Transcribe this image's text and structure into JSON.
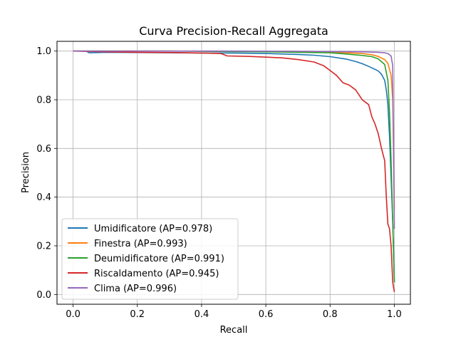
{
  "chart_data": {
    "type": "line",
    "title": "Curva Precision-Recall Aggregata",
    "xlabel": "Recall",
    "ylabel": "Precision",
    "xlim": [
      -0.05,
      1.05
    ],
    "ylim": [
      -0.04,
      1.04
    ],
    "xticks": [
      "0.0",
      "0.2",
      "0.4",
      "0.6",
      "0.8",
      "1.0"
    ],
    "yticks": [
      "0.0",
      "0.2",
      "0.4",
      "0.6",
      "0.8",
      "1.0"
    ],
    "grid": true,
    "legend_position": "lower-left",
    "series": [
      {
        "name": "Umidificatore (AP=0.978)",
        "color": "#1f77b4",
        "points": [
          [
            0.0,
            1.0
          ],
          [
            0.04,
            1.0
          ],
          [
            0.05,
            0.993
          ],
          [
            0.1,
            0.995
          ],
          [
            0.2,
            0.994
          ],
          [
            0.3,
            0.993
          ],
          [
            0.4,
            0.992
          ],
          [
            0.5,
            0.992
          ],
          [
            0.6,
            0.99
          ],
          [
            0.7,
            0.986
          ],
          [
            0.75,
            0.983
          ],
          [
            0.8,
            0.977
          ],
          [
            0.85,
            0.967
          ],
          [
            0.88,
            0.957
          ],
          [
            0.9,
            0.948
          ],
          [
            0.92,
            0.937
          ],
          [
            0.94,
            0.925
          ],
          [
            0.95,
            0.918
          ],
          [
            0.96,
            0.905
          ],
          [
            0.97,
            0.88
          ],
          [
            0.975,
            0.84
          ],
          [
            0.98,
            0.78
          ],
          [
            0.985,
            0.65
          ],
          [
            0.99,
            0.48
          ],
          [
            0.995,
            0.3
          ],
          [
            0.998,
            0.15
          ],
          [
            1.0,
            0.05
          ]
        ]
      },
      {
        "name": "Finestra (AP=0.993)",
        "color": "#ff7f0e",
        "points": [
          [
            0.0,
            1.0
          ],
          [
            0.3,
            1.0
          ],
          [
            0.5,
            0.999
          ],
          [
            0.6,
            0.998
          ],
          [
            0.7,
            0.997
          ],
          [
            0.8,
            0.995
          ],
          [
            0.85,
            0.993
          ],
          [
            0.9,
            0.99
          ],
          [
            0.93,
            0.985
          ],
          [
            0.95,
            0.978
          ],
          [
            0.97,
            0.965
          ],
          [
            0.98,
            0.95
          ],
          [
            0.99,
            0.9
          ],
          [
            0.995,
            0.8
          ],
          [
            1.0,
            0.35
          ]
        ]
      },
      {
        "name": "Deumidificatore (AP=0.991)",
        "color": "#2ca02c",
        "points": [
          [
            0.0,
            1.0
          ],
          [
            0.3,
            1.0
          ],
          [
            0.5,
            0.998
          ],
          [
            0.6,
            0.997
          ],
          [
            0.7,
            0.995
          ],
          [
            0.8,
            0.993
          ],
          [
            0.85,
            0.988
          ],
          [
            0.9,
            0.982
          ],
          [
            0.93,
            0.977
          ],
          [
            0.95,
            0.968
          ],
          [
            0.97,
            0.945
          ],
          [
            0.98,
            0.88
          ],
          [
            0.985,
            0.75
          ],
          [
            0.99,
            0.55
          ],
          [
            0.995,
            0.3
          ],
          [
            1.0,
            0.05
          ]
        ]
      },
      {
        "name": "Riscaldamento (AP=0.945)",
        "color": "#d62728",
        "points": [
          [
            0.0,
            1.0
          ],
          [
            0.1,
            0.997
          ],
          [
            0.2,
            0.995
          ],
          [
            0.3,
            0.994
          ],
          [
            0.4,
            0.992
          ],
          [
            0.46,
            0.99
          ],
          [
            0.48,
            0.98
          ],
          [
            0.55,
            0.978
          ],
          [
            0.6,
            0.975
          ],
          [
            0.65,
            0.972
          ],
          [
            0.7,
            0.965
          ],
          [
            0.75,
            0.955
          ],
          [
            0.78,
            0.94
          ],
          [
            0.8,
            0.92
          ],
          [
            0.82,
            0.9
          ],
          [
            0.84,
            0.87
          ],
          [
            0.86,
            0.86
          ],
          [
            0.88,
            0.84
          ],
          [
            0.9,
            0.8
          ],
          [
            0.92,
            0.78
          ],
          [
            0.93,
            0.73
          ],
          [
            0.94,
            0.7
          ],
          [
            0.95,
            0.66
          ],
          [
            0.96,
            0.6
          ],
          [
            0.97,
            0.55
          ],
          [
            0.975,
            0.4
          ],
          [
            0.98,
            0.29
          ],
          [
            0.985,
            0.27
          ],
          [
            0.99,
            0.2
          ],
          [
            0.995,
            0.05
          ],
          [
            1.0,
            0.01
          ]
        ]
      },
      {
        "name": "Clima (AP=0.996)",
        "color": "#9467bd",
        "points": [
          [
            0.0,
            1.0
          ],
          [
            0.5,
            1.0
          ],
          [
            0.7,
            0.999
          ],
          [
            0.8,
            0.998
          ],
          [
            0.9,
            0.997
          ],
          [
            0.95,
            0.995
          ],
          [
            0.97,
            0.993
          ],
          [
            0.98,
            0.99
          ],
          [
            0.99,
            0.98
          ],
          [
            0.995,
            0.94
          ],
          [
            1.0,
            0.27
          ]
        ]
      }
    ]
  }
}
